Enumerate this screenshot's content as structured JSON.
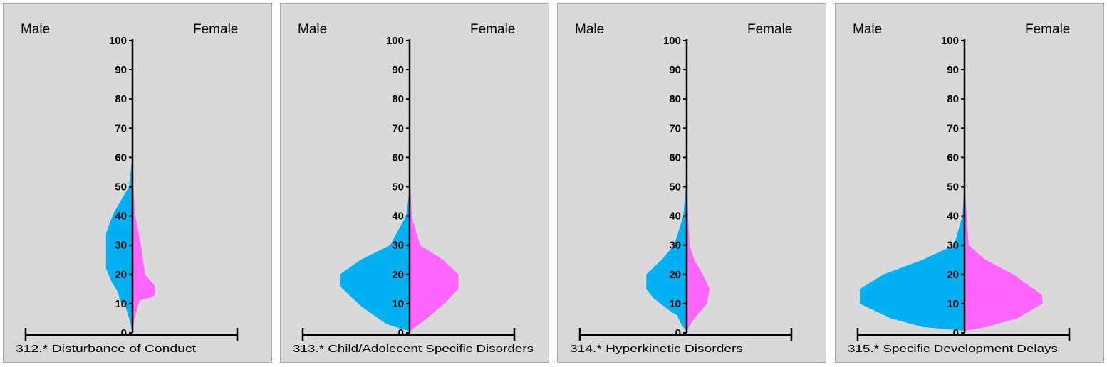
{
  "colors": {
    "male": "#00b0f0",
    "female": "#ff66ff",
    "axis": "#000000",
    "panel_bg": "#d9d9d9"
  },
  "chart_data": [
    {
      "type": "area",
      "title": "312.* Disturbance of Conduct",
      "left_label": "Male",
      "right_label": "Female",
      "yticks": [
        "0",
        "10",
        "20",
        "30",
        "40",
        "50",
        "60",
        "70",
        "80",
        "90",
        "100"
      ],
      "ylim": [
        0,
        100
      ],
      "male_profile": [
        [
          0,
          0
        ],
        [
          0,
          0.2
        ],
        [
          0.5,
          5
        ],
        [
          1,
          9
        ],
        [
          1.8,
          11
        ],
        [
          2.1,
          14
        ],
        [
          2.9,
          17
        ],
        [
          3.8,
          22
        ],
        [
          3.8,
          34
        ],
        [
          2.7,
          41
        ],
        [
          0.5,
          50
        ],
        [
          0.05,
          60
        ],
        [
          0,
          62
        ]
      ],
      "female_profile": [
        [
          0,
          0
        ],
        [
          0,
          0.2
        ],
        [
          0.3,
          5
        ],
        [
          1,
          11
        ],
        [
          2.5,
          12
        ],
        [
          3.3,
          13
        ],
        [
          3.2,
          16
        ],
        [
          1.8,
          20
        ],
        [
          1.2,
          30
        ],
        [
          0.4,
          40
        ],
        [
          0.1,
          50
        ],
        [
          0.01,
          57
        ],
        [
          0,
          58
        ]
      ]
    },
    {
      "type": "area",
      "title": "313.* Child/Adolecent Specific Disorders",
      "left_label": "Male",
      "right_label": "Female",
      "yticks": [
        "0",
        "10",
        "20",
        "30",
        "40",
        "50",
        "60",
        "70",
        "80",
        "90",
        "100"
      ],
      "ylim": [
        0,
        100
      ],
      "male_profile": [
        [
          0,
          0
        ],
        [
          0,
          0.5
        ],
        [
          3.3,
          3
        ],
        [
          6.9,
          9
        ],
        [
          10,
          16
        ],
        [
          10,
          20
        ],
        [
          7,
          25
        ],
        [
          2.8,
          30
        ],
        [
          0.5,
          40
        ],
        [
          0.05,
          48
        ],
        [
          0,
          50
        ]
      ],
      "female_profile": [
        [
          0,
          0
        ],
        [
          0,
          0.5
        ],
        [
          2,
          4
        ],
        [
          5,
          10
        ],
        [
          7,
          15
        ],
        [
          7,
          20
        ],
        [
          4.8,
          25
        ],
        [
          1.5,
          30
        ],
        [
          0.3,
          40
        ],
        [
          0.05,
          55
        ],
        [
          0,
          60
        ]
      ]
    },
    {
      "type": "area",
      "title": "314.* Hyperkinetic Disorders",
      "left_label": "Male",
      "right_label": "Female",
      "yticks": [
        "0",
        "10",
        "20",
        "30",
        "40",
        "50",
        "60",
        "70",
        "80",
        "90",
        "100"
      ],
      "ylim": [
        0,
        100
      ],
      "male_profile": [
        [
          0,
          0
        ],
        [
          0,
          0.4
        ],
        [
          0.8,
          3
        ],
        [
          1.4,
          6
        ],
        [
          2.7,
          8
        ],
        [
          4.8,
          12
        ],
        [
          5.8,
          15
        ],
        [
          5.8,
          20
        ],
        [
          3.6,
          25
        ],
        [
          1.8,
          30
        ],
        [
          0.5,
          40
        ],
        [
          0.1,
          50
        ],
        [
          0,
          55
        ]
      ],
      "female_profile": [
        [
          0,
          0
        ],
        [
          0,
          0.4
        ],
        [
          0.5,
          3
        ],
        [
          1.5,
          6
        ],
        [
          2.9,
          10
        ],
        [
          3.3,
          15
        ],
        [
          2.3,
          20
        ],
        [
          1.1,
          25
        ],
        [
          0.4,
          30
        ],
        [
          0.1,
          45
        ],
        [
          0,
          62
        ]
      ]
    },
    {
      "type": "area",
      "title": "315.* Specific Development Delays",
      "left_label": "Male",
      "right_label": "Female",
      "yticks": [
        "0",
        "10",
        "20",
        "30",
        "40",
        "50",
        "60",
        "70",
        "80",
        "90",
        "100"
      ],
      "ylim": [
        0,
        100
      ],
      "male_profile": [
        [
          0,
          0
        ],
        [
          0,
          0.7
        ],
        [
          6,
          2
        ],
        [
          10.6,
          5
        ],
        [
          15,
          10
        ],
        [
          15,
          15
        ],
        [
          11.6,
          20
        ],
        [
          6,
          25
        ],
        [
          1.5,
          30
        ],
        [
          0.3,
          40
        ],
        [
          0.03,
          50
        ],
        [
          0,
          52
        ]
      ],
      "female_profile": [
        [
          0,
          0
        ],
        [
          0,
          0.7
        ],
        [
          3.2,
          2
        ],
        [
          7.6,
          5
        ],
        [
          11.2,
          10
        ],
        [
          11.1,
          13
        ],
        [
          7,
          20
        ],
        [
          3,
          25
        ],
        [
          0.6,
          30
        ],
        [
          0.05,
          50
        ],
        [
          0,
          60
        ]
      ]
    }
  ]
}
